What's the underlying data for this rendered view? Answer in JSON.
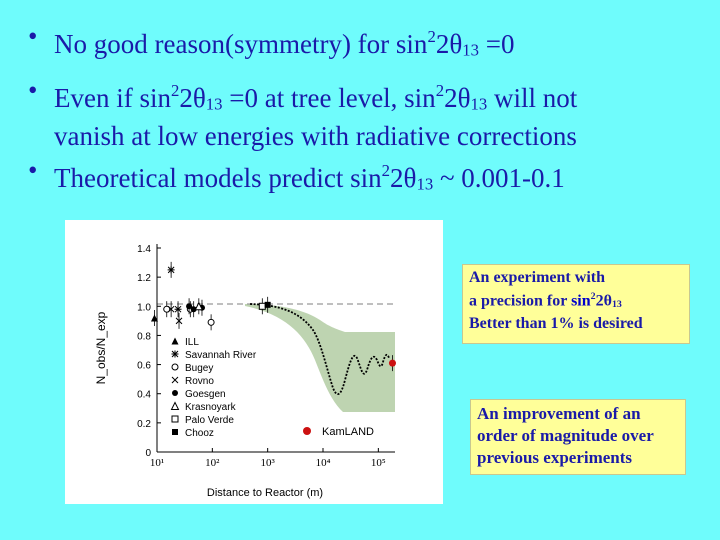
{
  "bullets": {
    "b1": {
      "pre": "No good reason(symmetry) for sin",
      "sup": "2",
      "mid": "2θ",
      "sub": "13",
      "post": " =0"
    },
    "b2": {
      "pre": "Even if sin",
      "sup": "2",
      "mid": "2θ",
      "sub": "13",
      "post": " =0 at tree level, sin",
      "sup2": "2",
      "mid2": "2θ",
      "sub2": "13",
      "post2": " will not",
      "line2": "vanish at low energies with radiative corrections"
    },
    "b3": {
      "pre": "Theoretical models predict sin",
      "sup": "2",
      "mid": "2θ",
      "sub": "13",
      "post": " ~ 0.001-0.1"
    }
  },
  "notes": {
    "n1": {
      "l1": "An experiment with",
      "l2pre": "a precision for ",
      "l2sin": "sin",
      "l2sup": "2",
      "l2mid": "2θ",
      "l2sub": "13",
      "l3": "Better than 1% is desired"
    },
    "n2": {
      "l1": "An improvement of an",
      "l2": "order of magnitude over",
      "l3": "previous experiments"
    }
  },
  "chart_data": {
    "type": "scatter",
    "xlabel": "Distance to Reactor (m)",
    "ylabel": "N_obs/N_exp",
    "xscale": "log",
    "xlim": [
      10,
      200000
    ],
    "ylim": [
      0,
      1.4
    ],
    "yticks": [
      "0",
      "0.2",
      "0.4",
      "0.6",
      "0.8",
      "1.0",
      "1.2",
      "1.4"
    ],
    "xticks": [
      "10¹",
      "10²",
      "10³",
      "10⁴",
      "10⁵"
    ],
    "legend": [
      "ILL",
      "Savannah River",
      "Bugey",
      "Rovno",
      "Goesgen",
      "Krasnoyark",
      "Palo Verde",
      "Chooz"
    ],
    "kamland_label": "KamLAND",
    "series": [
      {
        "name": "ILL",
        "x": 9,
        "y": 0.92
      },
      {
        "name": "Savannah River",
        "x": 18,
        "y": 1.25
      },
      {
        "name": "Savannah River",
        "x": 24,
        "y": 0.98
      },
      {
        "name": "Bugey",
        "x": 15,
        "y": 0.98
      },
      {
        "name": "Bugey",
        "x": 40,
        "y": 0.98
      },
      {
        "name": "Bugey",
        "x": 95,
        "y": 0.89
      },
      {
        "name": "Rovno",
        "x": 18,
        "y": 0.98
      },
      {
        "name": "Rovno",
        "x": 25,
        "y": 0.9
      },
      {
        "name": "Goesgen",
        "x": 38,
        "y": 1.0
      },
      {
        "name": "Goesgen",
        "x": 46,
        "y": 0.98
      },
      {
        "name": "Goesgen",
        "x": 65,
        "y": 0.99
      },
      {
        "name": "Krasnoyark",
        "x": 57,
        "y": 1.0
      },
      {
        "name": "Palo Verde",
        "x": 800,
        "y": 1.0
      },
      {
        "name": "Chooz",
        "x": 1000,
        "y": 1.01
      },
      {
        "name": "KamLAND",
        "x": 180000,
        "y": 0.61
      }
    ]
  }
}
